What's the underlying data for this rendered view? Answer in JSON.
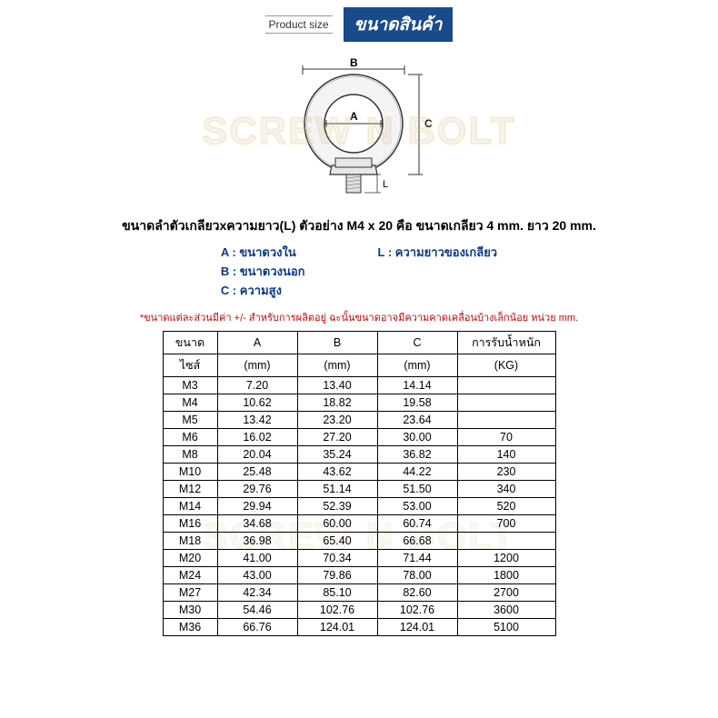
{
  "header": {
    "en": "Product size",
    "th": "ขนาดสินค้า"
  },
  "diagram": {
    "label_a": "A",
    "label_b": "B",
    "label_c": "C",
    "label_l": "L",
    "stroke": "#333333",
    "fill_light": "#f5f5f5",
    "fill_shadow": "#d8d8d8"
  },
  "watermark": "SCREW N BOLT",
  "description": "ขนาดลำตัวเกลียวxความยาว(L) ตัวอย่าง M4 x 20 คือ ขนาดเกลียว 4 mm. ยาว 20 mm.",
  "legend": {
    "a": "A : ขนาดวงใน",
    "b": "B : ขนาดวงนอก",
    "c": "C : ความสูง",
    "l": "L : ความยาวของเกลียว"
  },
  "note": "*ขนาดแต่ละส่วนมีค่า +/- สำหรับการผลิตอยู่ ฉะนั้นขนาดอาจมีความคาดเคลื่อนบ้างเล็กน้อย หน่วย mm.",
  "table": {
    "headers": {
      "size1": "ขนาด",
      "size2": "ไซส์",
      "a": "A",
      "a_unit": "(mm)",
      "b": "B",
      "b_unit": "(mm)",
      "c": "C",
      "c_unit": "(mm)",
      "load": "การรับน้ำหนัก",
      "load_unit": "(KG)"
    },
    "rows": [
      {
        "size": "M3",
        "a": "7.20",
        "b": "13.40",
        "c": "14.14",
        "kg": ""
      },
      {
        "size": "M4",
        "a": "10.62",
        "b": "18.82",
        "c": "19.58",
        "kg": ""
      },
      {
        "size": "M5",
        "a": "13.42",
        "b": "23.20",
        "c": "23.64",
        "kg": ""
      },
      {
        "size": "M6",
        "a": "16.02",
        "b": "27.20",
        "c": "30.00",
        "kg": "70"
      },
      {
        "size": "M8",
        "a": "20.04",
        "b": "35.24",
        "c": "36.82",
        "kg": "140"
      },
      {
        "size": "M10",
        "a": "25.48",
        "b": "43.62",
        "c": "44.22",
        "kg": "230"
      },
      {
        "size": "M12",
        "a": "29.76",
        "b": "51.14",
        "c": "51.50",
        "kg": "340"
      },
      {
        "size": "M14",
        "a": "29.94",
        "b": "52.39",
        "c": "53.00",
        "kg": "520"
      },
      {
        "size": "M16",
        "a": "34.68",
        "b": "60.00",
        "c": "60.74",
        "kg": "700"
      },
      {
        "size": "M18",
        "a": "36.98",
        "b": "65.40",
        "c": "66.68",
        "kg": ""
      },
      {
        "size": "M20",
        "a": "41.00",
        "b": "70.34",
        "c": "71.44",
        "kg": "1200"
      },
      {
        "size": "M24",
        "a": "43.00",
        "b": "79.86",
        "c": "78.00",
        "kg": "1800"
      },
      {
        "size": "M27",
        "a": "42.34",
        "b": "85.10",
        "c": "82.60",
        "kg": "2700"
      },
      {
        "size": "M30",
        "a": "54.46",
        "b": "102.76",
        "c": "102.76",
        "kg": "3600"
      },
      {
        "size": "M36",
        "a": "66.76",
        "b": "124.01",
        "c": "124.01",
        "kg": "5100"
      }
    ]
  }
}
